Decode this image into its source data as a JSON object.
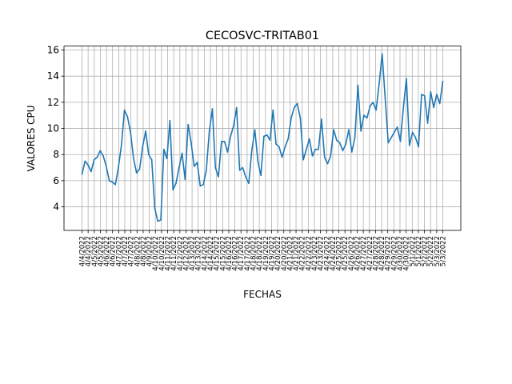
{
  "chart_data": {
    "type": "line",
    "title": "CECOSVC-TRITAB01",
    "xlabel": "FECHAS",
    "ylabel": "VALORES CPU",
    "grid": true,
    "ylim": [
      2.2,
      16.3
    ],
    "yticks": [
      4,
      6,
      8,
      10,
      12,
      14,
      16
    ],
    "xtick_labels": [
      "4/4/2022",
      "4/4/2022",
      "4/5/2022",
      "4/5/2022",
      "4/6/2022",
      "4/6/2022",
      "4/7/2022",
      "4/7/2022",
      "4/7/2022",
      "4/8/2022",
      "4/8/2022",
      "4/9/2022",
      "4/10/2022",
      "4/10/2022",
      "4/11/2022",
      "4/11/2022",
      "4/12/2022",
      "4/12/2022",
      "4/13/2022",
      "4/13/2022",
      "4/14/2022",
      "4/14/2022",
      "4/15/2022",
      "4/15/2022",
      "4/16/2022",
      "4/16/2022",
      "4/17/2022",
      "4/17/2022",
      "4/18/2022",
      "4/18/2022",
      "4/19/2022",
      "4/19/2022",
      "4/20/2022",
      "4/20/2022",
      "4/21/2022",
      "4/21/2022",
      "4/22/2022",
      "4/22/2022",
      "4/23/2022",
      "4/23/2022",
      "4/24/2022",
      "4/24/2022",
      "4/25/2022",
      "4/25/2022",
      "4/26/2022",
      "4/26/2022",
      "4/27/2022",
      "4/27/2022",
      "4/28/2022",
      "4/28/2022",
      "4/29/2022",
      "4/29/2022",
      "4/30/2022",
      "4/30/2022",
      "5/1/2022",
      "5/1/2022",
      "5/2/2022",
      "5/2/2022",
      "5/3/2022",
      "5/3/2022"
    ],
    "series": [
      {
        "color": "#1f77b4",
        "values": [
          6.5,
          7.5,
          7.2,
          6.7,
          7.6,
          7.8,
          8.3,
          7.9,
          7.1,
          6.0,
          5.9,
          5.7,
          7.0,
          8.7,
          11.4,
          10.9,
          9.7,
          7.7,
          6.6,
          6.9,
          8.6,
          9.8,
          8.0,
          7.6,
          3.9,
          2.9,
          3.0,
          8.4,
          7.7,
          10.6,
          5.3,
          5.8,
          7.0,
          8.1,
          6.1,
          10.3,
          8.9,
          7.1,
          7.4,
          5.6,
          5.7,
          6.8,
          9.8,
          11.5,
          7.0,
          6.3,
          9.0,
          9.0,
          8.2,
          9.4,
          10.2,
          11.6,
          6.8,
          7.0,
          6.3,
          5.8,
          8.3,
          9.9,
          7.5,
          6.4,
          9.4,
          9.5,
          9.1,
          11.4,
          8.8,
          8.6,
          7.8,
          8.6,
          9.2,
          10.8,
          11.6,
          11.9,
          10.8,
          7.6,
          8.4,
          9.2,
          7.9,
          8.4,
          8.4,
          10.7,
          7.8,
          7.3,
          7.9,
          9.9,
          9.1,
          8.9,
          8.3,
          8.8,
          9.9,
          8.2,
          9.3,
          13.3,
          9.8,
          11.0,
          10.8,
          11.7,
          12.0,
          11.4,
          13.4,
          15.7,
          12.3,
          8.9,
          9.3,
          9.7,
          10.1,
          9.0,
          11.6,
          13.8,
          8.7,
          9.7,
          9.3,
          8.6,
          12.6,
          12.5,
          10.4,
          12.8,
          11.6,
          12.6,
          11.9,
          13.6
        ]
      }
    ]
  }
}
